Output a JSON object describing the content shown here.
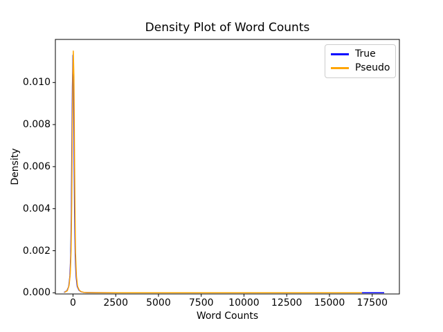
{
  "figure": {
    "background": "#ffffff",
    "axes_edge_color": "#000000"
  },
  "chart_data": {
    "type": "line",
    "title": "Density Plot of Word Counts",
    "xlabel": "Word Counts",
    "ylabel": "Density",
    "grid": false,
    "legend": {
      "position": "upper right",
      "frame": true
    },
    "xlim": [
      -1030,
      19090
    ],
    "ylim": [
      -5.6e-05,
      0.01205
    ],
    "x_ticks": {
      "values": [
        0,
        2500,
        5000,
        7500,
        10000,
        12500,
        15000,
        17500
      ],
      "labels": [
        "0",
        "2500",
        "5000",
        "7500",
        "10000",
        "12500",
        "15000",
        "17500"
      ]
    },
    "y_ticks": {
      "values": [
        0.0,
        0.002,
        0.004,
        0.006,
        0.008,
        0.01
      ],
      "labels": [
        "0.000",
        "0.002",
        "0.004",
        "0.006",
        "0.008",
        "0.010"
      ]
    },
    "series": [
      {
        "name": "True",
        "color": "#0000ff",
        "peak": {
          "x": 0,
          "y": 0.0113
        },
        "x": [
          -520,
          -350,
          -250,
          -180,
          -130,
          -95,
          -65,
          -35,
          0,
          35,
          65,
          95,
          130,
          180,
          250,
          350,
          470,
          620,
          850,
          1300,
          2500,
          5000,
          9000,
          13000,
          16000,
          18200
        ],
        "y": [
          2e-05,
          0.0001,
          0.0003,
          0.0008,
          0.0018,
          0.0038,
          0.0068,
          0.0098,
          0.0113,
          0.0098,
          0.0068,
          0.0038,
          0.0018,
          0.0008,
          0.0003,
          0.00012,
          5e-05,
          2e-05,
          1e-05,
          6e-06,
          4e-06,
          3e-06,
          3e-06,
          3e-06,
          3e-06,
          3e-06
        ]
      },
      {
        "name": "Pseudo",
        "color": "#ffa500",
        "peak": {
          "x": 20,
          "y": 0.0115
        },
        "x": [
          -500,
          -330,
          -230,
          -160,
          -110,
          -75,
          -45,
          -15,
          20,
          55,
          85,
          115,
          150,
          200,
          270,
          370,
          490,
          640,
          870,
          1350,
          2600,
          5200,
          9500,
          13600,
          16900
        ],
        "y": [
          2e-05,
          0.0001,
          0.00035,
          0.0009,
          0.002,
          0.0042,
          0.0073,
          0.0103,
          0.0115,
          0.0103,
          0.0072,
          0.0041,
          0.0019,
          0.0008,
          0.0003,
          0.00012,
          5e-05,
          2e-05,
          1e-05,
          6e-06,
          4e-06,
          3e-06,
          3e-06,
          3e-06,
          3e-06
        ]
      }
    ]
  }
}
